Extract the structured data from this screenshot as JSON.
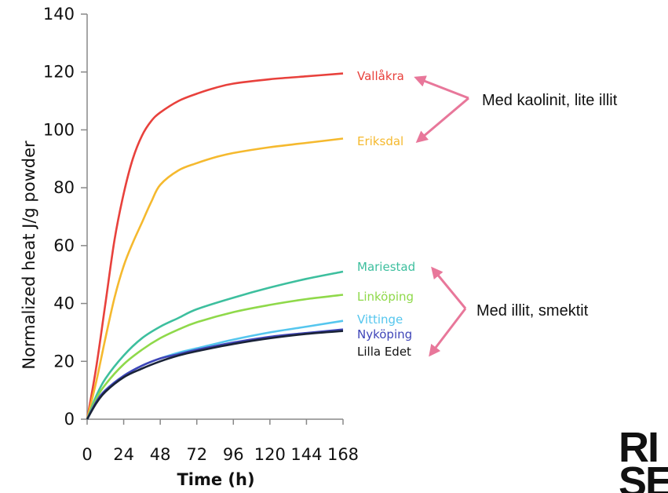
{
  "chart_data": {
    "type": "line",
    "title": "",
    "xlabel": "Time (h)",
    "ylabel": "Normalized heat J/g powder",
    "xlim": [
      0,
      168
    ],
    "ylim": [
      0,
      140
    ],
    "xticks": [
      0,
      24,
      48,
      72,
      96,
      120,
      144,
      168
    ],
    "yticks": [
      0,
      20,
      40,
      60,
      80,
      100,
      120,
      140
    ],
    "grid": false,
    "series": [
      {
        "name": "Vallåkra",
        "color": "#e8413c",
        "x": [
          0,
          6,
          12,
          18,
          24,
          30,
          36,
          42,
          48,
          60,
          72,
          84,
          96,
          120,
          144,
          168
        ],
        "y": [
          0,
          18,
          40,
          62,
          78,
          90,
          98,
          103,
          106,
          110,
          112.5,
          114.5,
          116,
          117.5,
          118.5,
          119.5
        ]
      },
      {
        "name": "Eriksdal",
        "color": "#f5b92e",
        "x": [
          0,
          6,
          12,
          18,
          24,
          30,
          36,
          42,
          48,
          60,
          72,
          84,
          96,
          120,
          144,
          168
        ],
        "y": [
          0,
          13,
          28,
          42,
          53,
          61,
          68,
          75,
          81,
          86,
          88.5,
          90.5,
          92,
          94,
          95.5,
          97
        ]
      },
      {
        "name": "Mariestad",
        "color": "#3dbf9e",
        "x": [
          0,
          6,
          12,
          24,
          36,
          48,
          60,
          72,
          96,
          120,
          144,
          168
        ],
        "y": [
          0,
          8,
          14,
          22,
          28,
          32,
          35,
          38,
          42,
          45.5,
          48.5,
          51
        ]
      },
      {
        "name": "Linköping",
        "color": "#8fd94a",
        "x": [
          0,
          6,
          12,
          24,
          36,
          48,
          60,
          72,
          96,
          120,
          144,
          168
        ],
        "y": [
          0,
          7,
          12,
          19,
          24,
          28,
          31,
          33.5,
          37,
          39.5,
          41.5,
          43
        ]
      },
      {
        "name": "Vittinge",
        "color": "#55c6ee",
        "x": [
          0,
          6,
          12,
          24,
          36,
          48,
          60,
          72,
          96,
          120,
          144,
          168
        ],
        "y": [
          0,
          6,
          10,
          15,
          18.5,
          21,
          23,
          24.5,
          27.5,
          30,
          32,
          34
        ]
      },
      {
        "name": "Nyköping",
        "color": "#3f45b8",
        "x": [
          0,
          6,
          12,
          24,
          36,
          48,
          60,
          72,
          96,
          120,
          144,
          168
        ],
        "y": [
          0,
          6,
          10,
          15,
          18.5,
          21,
          22.5,
          24,
          26.5,
          28.5,
          29.8,
          31
        ]
      },
      {
        "name": "Lilla Edet",
        "color": "#1a2338",
        "x": [
          0,
          6,
          12,
          24,
          36,
          48,
          60,
          72,
          96,
          120,
          144,
          168
        ],
        "y": [
          0,
          5.5,
          9.5,
          14.5,
          17.5,
          20,
          22,
          23.5,
          26,
          28,
          29.5,
          30.5
        ]
      }
    ],
    "annotations": [
      {
        "text": "Med kaolinit, lite illit",
        "targets": [
          "Vallåkra",
          "Eriksdal"
        ],
        "color": "#e8779a"
      },
      {
        "text": "Med illit, smektit",
        "targets": [
          "Mariestad",
          "Lilla Edet"
        ],
        "color": "#e8779a"
      }
    ]
  },
  "logo": {
    "line1": "RI",
    "line2": "SE"
  }
}
